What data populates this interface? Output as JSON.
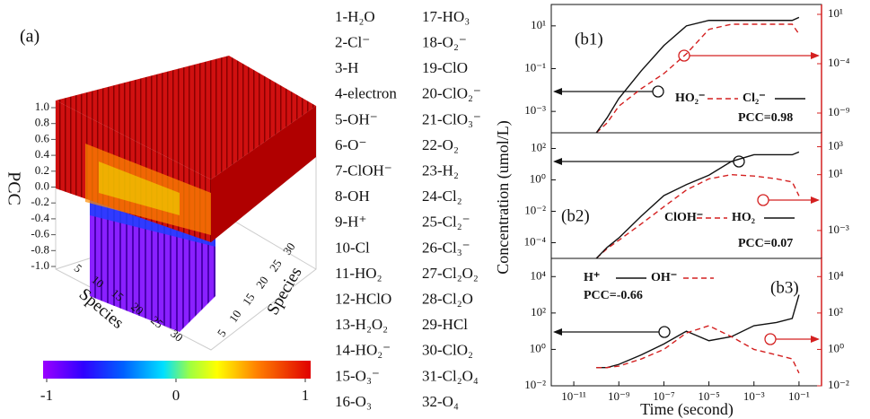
{
  "chart_data": [
    {
      "type": "bar3d",
      "panel_label": "(a)",
      "zlabel": "PCC",
      "xlabel": "Species",
      "ylabel": "Species",
      "zlim": [
        -1,
        1
      ],
      "zticks": [
        {
          "value": 1,
          "label": "1.0"
        },
        0.8,
        0.6,
        0.4,
        0.2,
        {
          "value": 0,
          "label": "0.0"
        },
        -0.2,
        -0.4,
        -0.6,
        -0.8,
        {
          "value": -1,
          "label": "-1.0"
        }
      ],
      "xticks": [
        5,
        10,
        15,
        20,
        25,
        30
      ],
      "yticks": [
        5,
        10,
        15,
        20,
        25,
        30
      ],
      "colormap": "jet",
      "clim": [
        -1,
        1
      ],
      "cticks": [
        -1,
        0,
        1
      ],
      "species": [
        "1-H₂O",
        "2-Cl⁻",
        "3-H",
        "4-electron",
        "5-OH⁻",
        "6-O⁻",
        "7-ClOH⁻",
        "8-OH",
        "9-H⁺",
        "10-Cl",
        "11-HO₂",
        "12-HClO",
        "13-H₂O₂",
        "14-HO₂⁻",
        "15-O₃⁻",
        "16-O₃",
        "17-HO₃",
        "18-O₂⁻",
        "19-ClO",
        "20-ClO₂⁻",
        "21-ClO₃⁻",
        "22-O₂",
        "23-H₂",
        "24-Cl₂",
        "25-Cl₂⁻",
        "26-Cl₃⁻",
        "27-Cl₂O₂",
        "28-Cl₂O",
        "29-HCl",
        "30-ClO₂",
        "31-Cl₂O₄",
        "32-O₄"
      ]
    },
    {
      "type": "line",
      "panel_label": "(b1)",
      "log_x": true,
      "log_y": true,
      "annotation": "PCC=0.98",
      "x": [
        1e-10,
        3e-10,
        1e-09,
        1e-08,
        1e-07,
        1e-06,
        1e-05,
        0.0001,
        0.001,
        0.01,
        0.05,
        0.1
      ],
      "xlim": [
        1e-12,
        1
      ],
      "ylim": [
        0.0001,
        100
      ],
      "yticks": [
        {
          "value": 0.001,
          "label": "10⁻³"
        },
        {
          "value": 0.1,
          "label": "10⁻¹"
        },
        {
          "value": 10,
          "label": "10¹"
        }
      ],
      "y2lim": [
        1e-11,
        100
      ],
      "y2ticks": [
        {
          "value": 1e-09,
          "label": "10⁻⁹"
        },
        {
          "value": 0.0001,
          "label": "10⁻⁴"
        },
        {
          "value": 10,
          "label": "10¹"
        }
      ],
      "series": [
        {
          "name": "HO₂⁻",
          "color": "#d42020",
          "dash": true,
          "axis": "y2",
          "values": [
            1e-11,
            1e-10,
            5e-09,
            3e-07,
            1e-05,
            0.001,
            0.3,
            1,
            1,
            1,
            1,
            0.1
          ]
        },
        {
          "name": "Cl₂⁻",
          "color": "#111111",
          "dash": false,
          "axis": "y",
          "values": [
            0.0001,
            0.0005,
            0.004,
            0.08,
            1.2,
            10,
            18,
            18,
            18,
            18,
            18,
            25
          ]
        }
      ]
    },
    {
      "type": "line",
      "panel_label": "(b2)",
      "log_x": true,
      "log_y": true,
      "annotation": "PCC=0.07",
      "ylabel": "Concentration (umol/L)",
      "x": [
        1e-10,
        3e-10,
        1e-09,
        1e-08,
        1e-07,
        1e-06,
        1e-05,
        0.0001,
        0.001,
        0.01,
        0.05,
        0.1
      ],
      "xlim": [
        1e-12,
        1
      ],
      "ylim": [
        1e-05,
        1000
      ],
      "yticks": [
        {
          "value": 0.0001,
          "label": "10⁻⁴"
        },
        {
          "value": 0.01,
          "label": "10⁻²"
        },
        {
          "value": 1,
          "label": "10⁰"
        },
        {
          "value": 100,
          "label": "10²"
        }
      ],
      "y2lim": [
        1e-05,
        10000
      ],
      "y2ticks": [
        {
          "value": 0.001,
          "label": "10⁻³"
        },
        {
          "value": 10,
          "label": "10¹"
        },
        {
          "value": 1000,
          "label": "10³"
        }
      ],
      "series": [
        {
          "name": "ClOH⁻",
          "color": "#d42020",
          "dash": true,
          "axis": "y2",
          "values": [
            1e-05,
            5e-05,
            0.0002,
            0.003,
            0.05,
            0.8,
            5,
            10,
            8,
            5,
            3,
            0.3
          ]
        },
        {
          "name": "HO₂",
          "color": "#111111",
          "dash": false,
          "axis": "y",
          "values": [
            1e-05,
            5e-05,
            0.0002,
            0.005,
            0.1,
            0.5,
            2,
            15,
            40,
            40,
            40,
            60
          ]
        }
      ]
    },
    {
      "type": "line",
      "panel_label": "(b3)",
      "log_x": true,
      "log_y": true,
      "annotation": "PCC=-0.66",
      "xlabel": "Time  (second)",
      "x": [
        1e-10,
        3e-10,
        1e-09,
        1e-08,
        1e-07,
        1e-06,
        1e-05,
        0.0001,
        0.001,
        0.01,
        0.05,
        0.1
      ],
      "xlim": [
        1e-12,
        1
      ],
      "xticks": [
        {
          "value": 1e-11,
          "label": "10⁻¹¹"
        },
        {
          "value": 1e-09,
          "label": "10⁻⁹"
        },
        {
          "value": 1e-07,
          "label": "10⁻⁷"
        },
        {
          "value": 1e-05,
          "label": "10⁻⁵"
        },
        {
          "value": 0.001,
          "label": "10⁻³"
        },
        {
          "value": 0.1,
          "label": "10⁻¹"
        }
      ],
      "ylim": [
        0.01,
        100000
      ],
      "yticks": [
        {
          "value": 0.01,
          "label": "10⁻²"
        },
        {
          "value": 1,
          "label": "10⁰"
        },
        {
          "value": 100,
          "label": "10²"
        },
        {
          "value": 10000,
          "label": "10⁴"
        }
      ],
      "y2lim": [
        0.01,
        100000
      ],
      "y2ticks": [
        {
          "value": 0.01,
          "label": "10⁻²"
        },
        {
          "value": 1,
          "label": "10⁰"
        },
        {
          "value": 100,
          "label": "10²"
        },
        {
          "value": 10000,
          "label": "10⁴"
        }
      ],
      "series": [
        {
          "name": "H⁺",
          "color": "#111111",
          "dash": false,
          "axis": "y",
          "values": [
            0.1,
            0.1,
            0.15,
            0.5,
            2,
            10,
            3,
            5,
            20,
            30,
            50,
            1000
          ]
        },
        {
          "name": "OH⁻",
          "color": "#d42020",
          "dash": true,
          "axis": "y2",
          "values": [
            0.1,
            0.1,
            0.12,
            0.3,
            1,
            8,
            20,
            5,
            1,
            0.5,
            0.3,
            0.05
          ]
        }
      ]
    }
  ]
}
